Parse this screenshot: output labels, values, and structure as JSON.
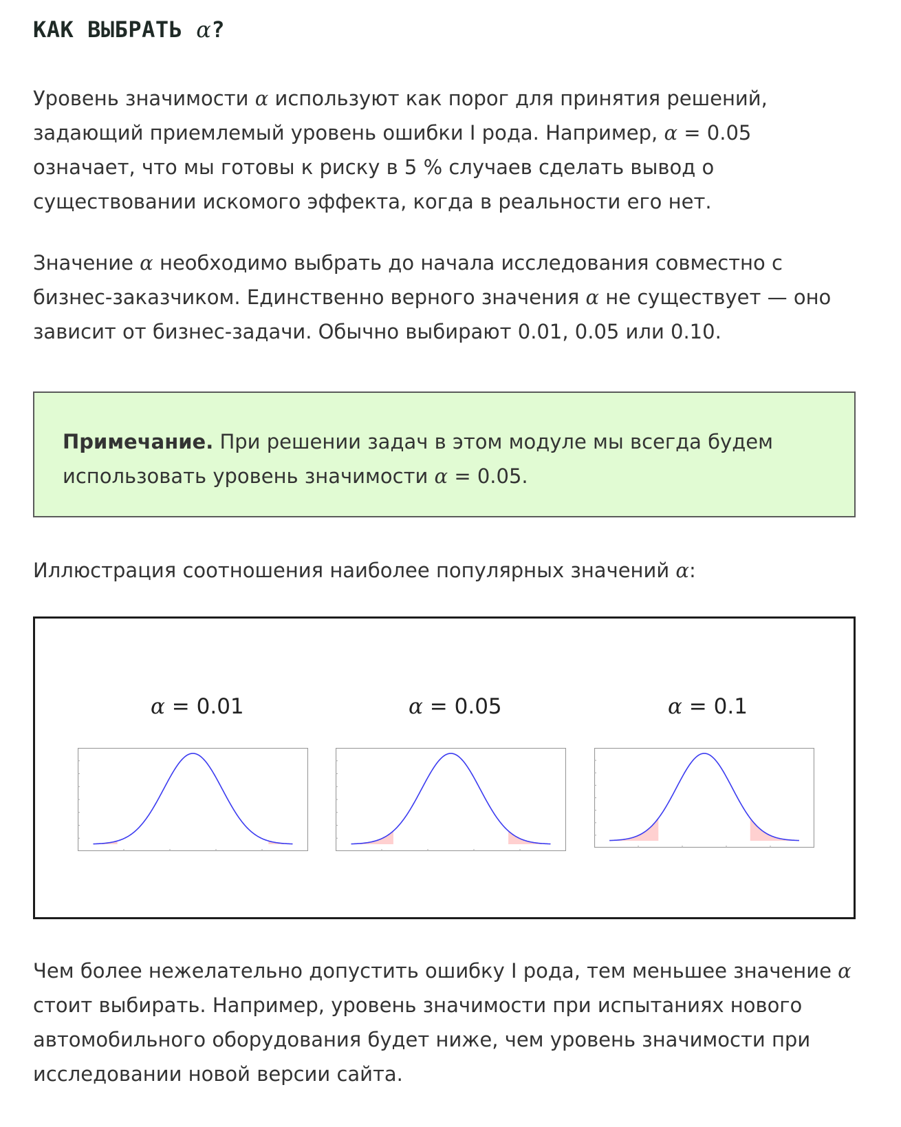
{
  "heading": {
    "text": "КАК ВЫБРАТЬ ",
    "alpha": "α",
    "suffix": "?"
  },
  "paragraph1": {
    "part1": "Уровень значимости ",
    "alpha1": "α",
    "part2": " используют как порог для принятия решений, задающий приемлемый уровень ошибки I рода. Например, ",
    "alpha2": "α",
    "part3": " = 0.05 означает, что мы готовы к риску в 5 % случаев сделать вывод о существовании искомого эффекта, когда в реальности его нет."
  },
  "paragraph2": {
    "part1": "Значение ",
    "alpha1": "α",
    "part2": " необходимо выбрать до начала исследования совместно с бизнес-заказчиком. Единственно верного значения ",
    "alpha2": "α",
    "part3": " не существует — оно зависит от бизнес-задачи. Обычно выбирают 0.01, 0.05 или 0.10."
  },
  "note": {
    "label": "Примечание.",
    "part1": " При решении задач в этом модуле мы всегда будем использовать уровень значимости ",
    "alpha": "α",
    "part2": " = 0.05."
  },
  "illustration_caption": {
    "part1": "Иллюстрация соотношения наиболее популярных значений ",
    "alpha": "α",
    "part2": ":"
  },
  "panels": [
    {
      "alpha": "α",
      "value_text": " = 0.01",
      "alpha_value": 0.01
    },
    {
      "alpha": "α",
      "value_text": " = 0.05",
      "alpha_value": 0.05
    },
    {
      "alpha": "α",
      "value_text": " = 0.1",
      "alpha_value": 0.1
    }
  ],
  "paragraph3": {
    "part1": "Чем более нежелательно допустить ошибку I рода, тем меньшее значение ",
    "alpha": "α",
    "part2": " стоит выбирать. Например, уровень значимости при испытаниях нового автомобильного оборудования будет ниже, чем уровень значимости при исследовании новой версии сайта."
  },
  "colors": {
    "curve": "#3b3bf0",
    "tail_fill": "#ffd0d0",
    "note_bg": "#e1fbd3"
  }
}
